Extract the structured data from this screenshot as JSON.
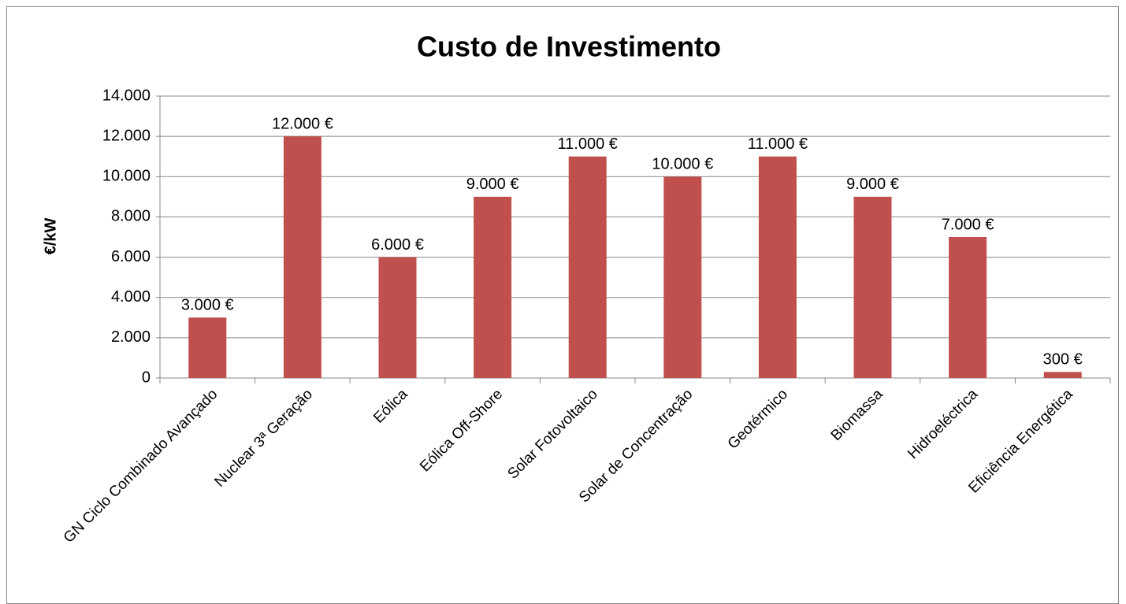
{
  "chart_data": {
    "type": "bar",
    "title": "Custo de Investimento",
    "y_label": "€/kW",
    "categories": [
      "GN Ciclo Combinado Avançado",
      "Nuclear 3ª Geração",
      "Eólica",
      "Eólica Off-Shore",
      "Solar Fotovoltaico",
      "Solar de Concentração",
      "Geotérmico",
      "Biomassa",
      "Hidroeléctrica",
      "Eficiência Energética"
    ],
    "values": [
      3000,
      12000,
      6000,
      9000,
      11000,
      10000,
      11000,
      9000,
      7000,
      300
    ],
    "value_labels": [
      "3.000 €",
      "12.000 €",
      "6.000 €",
      "9.000 €",
      "11.000 €",
      "10.000 €",
      "11.000 €",
      "9.000 €",
      "7.000 €",
      "300 €"
    ],
    "color": "#c0504d",
    "ylim": [
      0,
      14000
    ],
    "yticks": [
      0,
      {
        "value": 2000,
        "label": "2.000"
      },
      {
        "value": 4000,
        "label": "4.000"
      },
      {
        "value": 6000,
        "label": "6.000"
      },
      {
        "value": 8000,
        "label": "8.000"
      },
      {
        "value": 10000,
        "label": "10.000"
      },
      {
        "value": 12000,
        "label": "12.000"
      },
      {
        "value": 14000,
        "label": "14.000"
      }
    ],
    "grid": true
  }
}
